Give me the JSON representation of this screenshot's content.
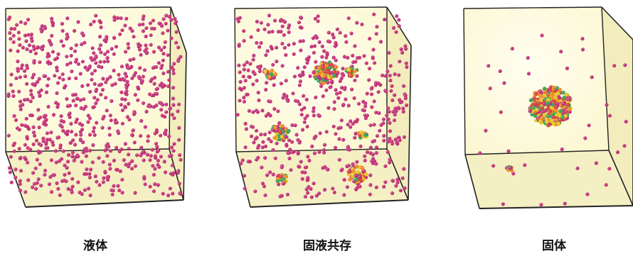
{
  "panels": [
    {
      "id": "liquid",
      "label": "液体"
    },
    {
      "id": "coexistence",
      "label": "固液共存"
    },
    {
      "id": "solid",
      "label": "固体"
    }
  ],
  "colors": {
    "box_fill": "#fbf7cf",
    "box_edge": "#222222",
    "particle": "#c2357a",
    "crystal": [
      "#e8c624",
      "#f28a2a",
      "#3aa35a",
      "#d24a3b",
      "#c2357a"
    ]
  }
}
